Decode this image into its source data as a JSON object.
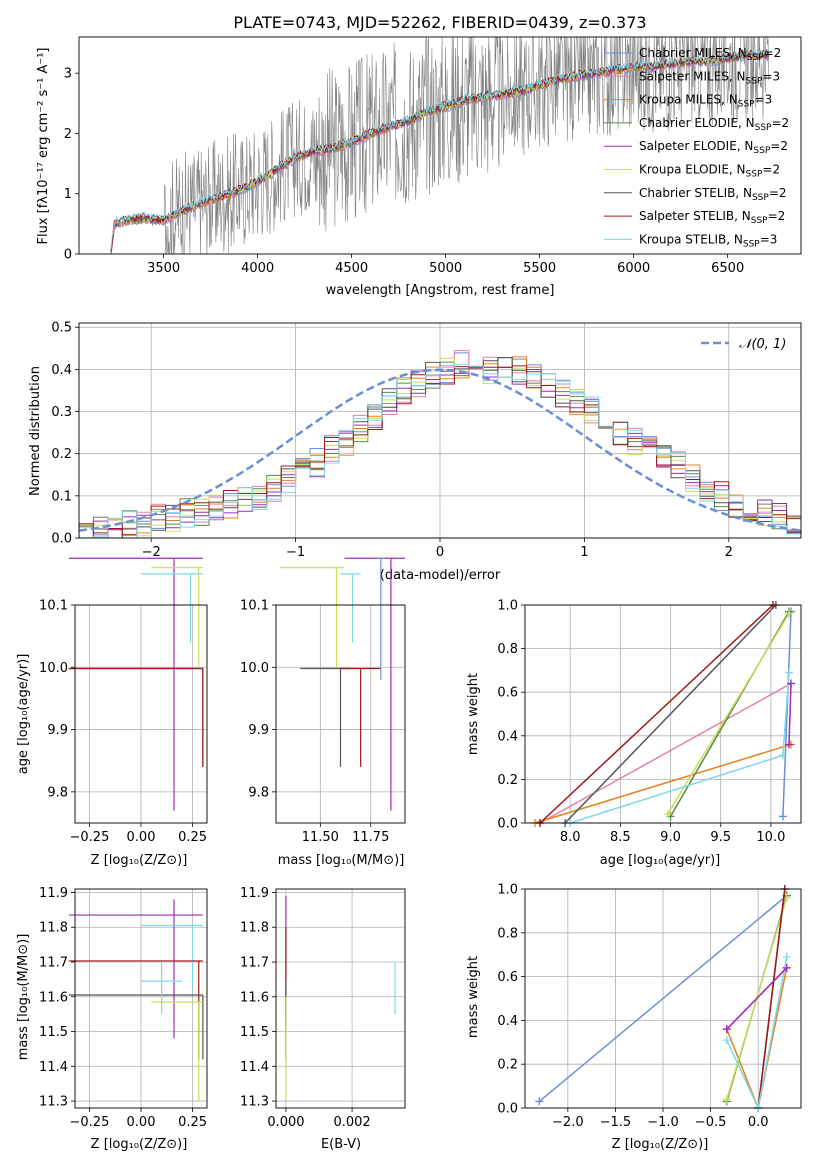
{
  "colors": {
    "c1": "#6b8fd6",
    "c2": "#e6821e",
    "c3": "#5a8a4a",
    "c4": "#a02cb8",
    "c5": "#c8e05a",
    "c6": "#555555",
    "c7": "#a01818",
    "c8": "#7fd8e6",
    "pink": "#e67fb0",
    "gray": "#808080",
    "grid": "#b0b0b0"
  },
  "chart_data": [
    {
      "id": "spectrum",
      "type": "line",
      "title": "PLATE=0743, MJD=52262, FIBERID=0439, z=0.373",
      "xlabel": "wavelength [Angstrom, rest frame]",
      "ylabel": "Flux [fλ10⁻¹⁷ erg cm⁻² s⁻¹ A⁻¹]",
      "xlim": [
        3050,
        6890
      ],
      "ylim": [
        0,
        3.6
      ],
      "xticks": [
        3500,
        4000,
        4500,
        5000,
        5500,
        6000,
        6500
      ],
      "yticks": [
        0,
        1,
        2,
        3
      ],
      "grid": false,
      "legend_position": "upper-right",
      "model_series": [
        {
          "name": "Chabrier MILES, N_SSP=2",
          "color": "c1"
        },
        {
          "name": "Salpeter MILES, N_SSP=3",
          "color": "pink"
        },
        {
          "name": "Kroupa MILES, N_SSP=3",
          "color": "c2"
        },
        {
          "name": "Chabrier ELODIE, N_SSP=2",
          "color": "c3"
        },
        {
          "name": "Salpeter ELODIE, N_SSP=2",
          "color": "c4"
        },
        {
          "name": "Kroupa ELODIE, N_SSP=2",
          "color": "c5"
        },
        {
          "name": "Chabrier STELIB, N_SSP=2",
          "color": "c6"
        },
        {
          "name": "Salpeter STELIB, N_SSP=2",
          "color": "c7"
        },
        {
          "name": "Kroupa STELIB, N_SSP=3",
          "color": "c8"
        }
      ],
      "model_continuum": {
        "x": [
          3220,
          3240,
          3300,
          3400,
          3500,
          3600,
          3700,
          3800,
          3900,
          4000,
          4100,
          4200,
          4300,
          4400,
          4500,
          4600,
          4700,
          4800,
          4900,
          5000,
          5100,
          5200,
          5300,
          5400,
          5500,
          5600,
          5700,
          5800,
          5900,
          6000,
          6100,
          6200,
          6300,
          6400,
          6500,
          6600,
          6720
        ],
        "y": [
          0.05,
          0.5,
          0.55,
          0.6,
          0.55,
          0.72,
          0.85,
          0.95,
          1.05,
          1.2,
          1.4,
          1.6,
          1.7,
          1.75,
          1.85,
          2.0,
          2.1,
          2.2,
          2.35,
          2.45,
          2.55,
          2.6,
          2.65,
          2.7,
          2.8,
          2.9,
          2.95,
          3.0,
          3.05,
          3.1,
          3.1,
          3.15,
          3.2,
          3.2,
          3.25,
          3.3,
          3.3
        ]
      },
      "observed_range": [
        3220,
        6720
      ]
    },
    {
      "id": "residuals",
      "type": "bar",
      "xlabel": "(data-model)/error",
      "ylabel": "Normed distribution",
      "xlim": [
        -2.5,
        2.5
      ],
      "ylim": [
        0,
        0.51
      ],
      "xticks": [
        -2,
        -1,
        0,
        1,
        2
      ],
      "yticks": [
        0.0,
        0.1,
        0.2,
        0.3,
        0.4,
        0.5
      ],
      "grid": true,
      "legend_position": "upper-right",
      "gaussian_label": "𝒩(0, 1)",
      "bin_width": 0.1,
      "bin_start": -2.5,
      "base_histogram": [
        0.01,
        0.02,
        0.03,
        0.04,
        0.03,
        0.05,
        0.05,
        0.06,
        0.06,
        0.07,
        0.08,
        0.09,
        0.1,
        0.12,
        0.14,
        0.17,
        0.18,
        0.21,
        0.23,
        0.26,
        0.29,
        0.32,
        0.35,
        0.37,
        0.39,
        0.4,
        0.41,
        0.41,
        0.4,
        0.4,
        0.4,
        0.38,
        0.36,
        0.34,
        0.32,
        0.3,
        0.28,
        0.25,
        0.23,
        0.21,
        0.19,
        0.17,
        0.14,
        0.12,
        0.1,
        0.08,
        0.07,
        0.06,
        0.05,
        0.04
      ]
    },
    {
      "id": "age-vs-z",
      "type": "scatter",
      "xlabel": "Z [log₁₀(Z/Z⊙)]",
      "ylabel": "age  [log₁₀(age/yr)]",
      "xlim": [
        -0.32,
        0.32
      ],
      "ylim": [
        9.75,
        10.1
      ],
      "xticks": [
        -0.25,
        0.0,
        0.25
      ],
      "yticks": [
        9.8,
        9.9,
        10.0,
        10.1
      ],
      "grid": true
    },
    {
      "id": "age-vs-mass",
      "type": "scatter",
      "xlabel": "mass [log₁₀(M/M⊙)]",
      "ylabel": "",
      "xlim": [
        11.28,
        11.92
      ],
      "ylim": [
        9.75,
        10.1
      ],
      "xticks": [
        11.5,
        11.75
      ],
      "yticks": [
        9.8,
        9.9,
        10.0,
        10.1
      ],
      "grid": true
    },
    {
      "id": "weight-vs-age",
      "type": "line",
      "xlabel": "age  [log₁₀(age/yr)]",
      "ylabel": "mass weight",
      "xlim": [
        7.55,
        10.3
      ],
      "ylim": [
        0,
        1
      ],
      "xticks": [
        8.0,
        8.5,
        9.0,
        9.5,
        10.0
      ],
      "yticks": [
        0.0,
        0.2,
        0.4,
        0.6,
        0.8,
        1.0
      ],
      "grid": true,
      "series": [
        {
          "color": "c1",
          "x": [
            10.12,
            10.2
          ],
          "y": [
            0.03,
            0.97
          ]
        },
        {
          "color": "pink",
          "x": [
            7.7,
            10.2
          ],
          "y": [
            0.0,
            0.64
          ]
        },
        {
          "color": "c2",
          "x": [
            7.65,
            10.2
          ],
          "y": [
            0.0,
            0.36
          ]
        },
        {
          "color": "c3",
          "x": [
            9.0,
            10.18
          ],
          "y": [
            0.03,
            0.97
          ]
        },
        {
          "color": "c5",
          "x": [
            8.97,
            10.18
          ],
          "y": [
            0.04,
            0.96
          ]
        },
        {
          "color": "c6",
          "x": [
            7.95,
            10.05
          ],
          "y": [
            0.0,
            1.0
          ]
        },
        {
          "color": "c7",
          "x": [
            7.7,
            10.02
          ],
          "y": [
            0.0,
            1.0
          ]
        },
        {
          "color": "c8",
          "x": [
            8.0,
            10.12,
            10.18
          ],
          "y": [
            0.0,
            0.31,
            0.69
          ]
        },
        {
          "color": "c4",
          "x": [
            10.18,
            10.2
          ],
          "y": [
            0.36,
            0.64
          ]
        }
      ]
    },
    {
      "id": "mass-vs-z",
      "type": "scatter",
      "xlabel": "Z [log₁₀(Z/Z⊙)]",
      "ylabel": "mass [log₁₀(M/M⊙)]",
      "xlim": [
        -0.32,
        0.32
      ],
      "ylim": [
        11.28,
        11.91
      ],
      "xticks": [
        -0.25,
        0.0,
        0.25
      ],
      "yticks": [
        11.3,
        11.4,
        11.5,
        11.6,
        11.7,
        11.8,
        11.9
      ],
      "grid": true
    },
    {
      "id": "mass-vs-ebv",
      "type": "scatter",
      "xlabel": "E(B-V)",
      "ylabel": "",
      "xlim": [
        -0.0003,
        0.0036
      ],
      "ylim": [
        11.28,
        11.91
      ],
      "xticks": [
        0.0,
        0.002
      ],
      "xticklabels": [
        "0.000",
        "0.002"
      ],
      "yticks": [
        11.3,
        11.4,
        11.5,
        11.6,
        11.7,
        11.8,
        11.9
      ],
      "grid": true
    },
    {
      "id": "weight-vs-z",
      "type": "line",
      "xlabel": "Z [log₁₀(Z/Z⊙)]",
      "ylabel": "mass weight",
      "xlim": [
        -2.45,
        0.45
      ],
      "ylim": [
        0,
        1
      ],
      "xticks": [
        -2.0,
        -1.5,
        -1.0,
        -0.5,
        0.0
      ],
      "yticks": [
        0.0,
        0.2,
        0.4,
        0.6,
        0.8,
        1.0
      ],
      "grid": true,
      "series": [
        {
          "color": "c1",
          "x": [
            -2.3,
            0.3
          ],
          "y": [
            0.03,
            0.97
          ]
        },
        {
          "color": "pink",
          "x": [
            -0.33,
            0.3
          ],
          "y": [
            0.36,
            0.64
          ]
        },
        {
          "color": "c2",
          "x": [
            -0.33,
            0.0,
            0.3
          ],
          "y": [
            0.36,
            0.0,
            0.64
          ]
        },
        {
          "color": "c3",
          "x": [
            -0.33,
            0.3
          ],
          "y": [
            0.03,
            0.97
          ]
        },
        {
          "color": "c5",
          "x": [
            -0.33,
            0.3
          ],
          "y": [
            0.04,
            0.96
          ]
        },
        {
          "color": "c6",
          "x": [
            0.0,
            0.28
          ],
          "y": [
            0.0,
            1.0
          ]
        },
        {
          "color": "c7",
          "x": [
            0.0,
            0.28
          ],
          "y": [
            0.0,
            1.0
          ]
        },
        {
          "color": "c8",
          "x": [
            -0.33,
            0.0,
            0.3
          ],
          "y": [
            0.31,
            0.0,
            0.69
          ]
        },
        {
          "color": "c4",
          "x": [
            -0.33,
            0.3
          ],
          "y": [
            0.36,
            0.64
          ]
        }
      ]
    }
  ]
}
